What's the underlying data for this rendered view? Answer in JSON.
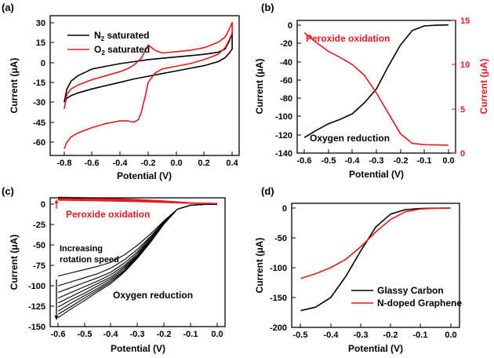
{
  "colors": {
    "black": "#000000",
    "red": "#e41a1c"
  },
  "chart_data": [
    {
      "panel": "(a)",
      "type": "line",
      "xlabel": "Potential (V)",
      "ylabel": "Current (μA)",
      "xlim": [
        -0.9,
        0.45
      ],
      "ylim": [
        -70,
        35
      ],
      "xticks": [
        -0.8,
        -0.6,
        -0.4,
        -0.2,
        0.0,
        0.2,
        0.4
      ],
      "xticklabels": [
        "-0.8",
        "-0.6",
        "-0.4",
        "-0.2",
        "0.0",
        "0.2",
        "0.4"
      ],
      "yticks": [
        -60,
        -45,
        -30,
        -15,
        0,
        15,
        30
      ],
      "yticklabels": [
        "-60",
        "-45",
        "-30",
        "-15",
        "0",
        "15",
        "30"
      ],
      "legend": {
        "placement": "top-left",
        "entries": [
          {
            "base": "N",
            "sub": "2",
            "rest": " saturated",
            "color": "#000000"
          },
          {
            "base": "O",
            "sub": "2",
            "rest": " saturated",
            "color": "#e41a1c"
          }
        ]
      },
      "series": [
        {
          "color": "#000000",
          "x": [
            -0.8,
            -0.78,
            -0.75,
            -0.7,
            -0.6,
            -0.5,
            -0.4,
            -0.3,
            -0.2,
            -0.1,
            0.0,
            0.1,
            0.2,
            0.3,
            0.35,
            0.38,
            0.4,
            0.4,
            0.38,
            0.35,
            0.3,
            0.2,
            0.1,
            0.0,
            -0.1,
            -0.2,
            -0.3,
            -0.4,
            -0.5,
            -0.6,
            -0.7,
            -0.75,
            -0.78,
            -0.8
          ],
          "y": [
            -30,
            -27,
            -25,
            -23,
            -20,
            -17.5,
            -15,
            -12.5,
            -10.5,
            -8.5,
            -6.5,
            -4.5,
            -2.5,
            0.5,
            3.5,
            7,
            10,
            22,
            16,
            10,
            7.5,
            6,
            5,
            4,
            3,
            2,
            0.5,
            -1,
            -3,
            -5,
            -10,
            -14,
            -20,
            -30
          ]
        },
        {
          "color": "#e41a1c",
          "x": [
            -0.8,
            -0.78,
            -0.75,
            -0.7,
            -0.6,
            -0.5,
            -0.4,
            -0.35,
            -0.3,
            -0.27,
            -0.25,
            -0.22,
            -0.2,
            -0.15,
            -0.1,
            0.0,
            0.1,
            0.2,
            0.3,
            0.35,
            0.38,
            0.4,
            0.4,
            0.38,
            0.35,
            0.3,
            0.2,
            0.1,
            0.0,
            -0.1,
            -0.15,
            -0.2,
            -0.25,
            -0.3,
            -0.35,
            -0.4,
            -0.5,
            -0.6,
            -0.7,
            -0.75,
            -0.78,
            -0.8
          ],
          "y": [
            -65,
            -60,
            -56,
            -53,
            -49,
            -46,
            -44,
            -44,
            -45,
            -43,
            -38,
            -25,
            -15,
            -8,
            -5,
            -3,
            -1,
            2,
            6,
            11,
            17,
            22,
            30,
            25,
            19,
            15,
            11,
            9,
            8,
            7,
            9,
            13,
            3,
            -2,
            -5,
            -7,
            -10,
            -13,
            -17,
            -20,
            -24,
            -35
          ]
        }
      ]
    },
    {
      "panel": "(b)",
      "type": "line",
      "xlabel": "Potential (V)",
      "ylabel": "Current (μA)",
      "y2label": "Current (μA)",
      "xlim": [
        -0.63,
        0.03
      ],
      "ylim": [
        -140,
        5
      ],
      "y2lim": [
        0,
        15
      ],
      "xticks": [
        -0.6,
        -0.5,
        -0.4,
        -0.3,
        -0.2,
        -0.1,
        0.0
      ],
      "xticklabels": [
        "-0.6",
        "-0.5",
        "-0.4",
        "-0.3",
        "-0.2",
        "-0.1",
        "0.0"
      ],
      "yticks": [
        -140,
        -120,
        -100,
        -80,
        -60,
        -40,
        -20,
        0
      ],
      "yticklabels": [
        "-140",
        "-120",
        "-100",
        "-80",
        "-60",
        "-40",
        "-20",
        "0"
      ],
      "y2ticks": [
        0,
        5,
        10,
        15
      ],
      "y2ticklabels": [
        "0",
        "5",
        "10",
        "15"
      ],
      "annotations": [
        {
          "text": "Peroxide oxidation",
          "color": "#e41a1c",
          "x": -0.6,
          "y": -13
        },
        {
          "text": "Oxygen reduction",
          "color": "#000000",
          "x": -0.48,
          "y": -117
        }
      ],
      "series": [
        {
          "color": "#000000",
          "axis": "left",
          "x": [
            -0.6,
            -0.55,
            -0.5,
            -0.45,
            -0.4,
            -0.35,
            -0.3,
            -0.25,
            -0.2,
            -0.15,
            -0.1,
            -0.05,
            0.0
          ],
          "y": [
            -123,
            -115,
            -108,
            -103,
            -97,
            -85,
            -70,
            -45,
            -22,
            -6,
            -1,
            -0.2,
            0
          ]
        },
        {
          "color": "#e41a1c",
          "axis": "right",
          "x": [
            -0.6,
            -0.55,
            -0.5,
            -0.45,
            -0.4,
            -0.35,
            -0.3,
            -0.25,
            -0.2,
            -0.15,
            -0.1,
            -0.05,
            0.0
          ],
          "y": [
            13.6,
            12.5,
            11.5,
            10.8,
            10.0,
            8.8,
            6.8,
            4.5,
            2.2,
            1.1,
            0.95,
            0.92,
            0.9
          ]
        }
      ]
    },
    {
      "panel": "(c)",
      "type": "line",
      "xlabel": "Potential (V)",
      "ylabel": "Current (μA)",
      "xlim": [
        -0.63,
        0.03
      ],
      "ylim": [
        -150,
        8
      ],
      "xticks": [
        -0.6,
        -0.5,
        -0.4,
        -0.3,
        -0.2,
        -0.1,
        0.0
      ],
      "xticklabels": [
        "-0.6",
        "-0.5",
        "-0.4",
        "-0.3",
        "-0.2",
        "-0.1",
        "0.0"
      ],
      "yticks": [
        -150,
        -125,
        -100,
        -75,
        -50,
        -25,
        0
      ],
      "yticklabels": [
        "-150",
        "-125",
        "-100",
        "-75",
        "-50",
        "-25",
        "0"
      ],
      "annotations": [
        {
          "text": "Peroxide oxidation",
          "color": "#e41a1c",
          "x": -0.59,
          "y": -3
        },
        {
          "text": "Increasing",
          "color": "#000000",
          "x": -0.6,
          "y": -42
        },
        {
          "text": "rotation speed",
          "color": "#000000",
          "x": -0.6,
          "y": -55
        },
        {
          "text": "Oxygen reduction",
          "color": "#000000",
          "x": -0.44,
          "y": -112
        }
      ],
      "reduction_x": [
        -0.6,
        -0.55,
        -0.5,
        -0.45,
        -0.4,
        -0.35,
        -0.3,
        -0.25,
        -0.2,
        -0.15,
        -0.1,
        -0.05,
        0.0
      ],
      "reduction_series": [
        [
          -88,
          -84,
          -80,
          -76,
          -71,
          -62,
          -50,
          -36,
          -20,
          -6,
          -1,
          -0.2,
          0
        ],
        [
          -100,
          -95,
          -90,
          -85,
          -78,
          -68,
          -55,
          -39,
          -21,
          -6,
          -1,
          -0.2,
          0
        ],
        [
          -108,
          -102,
          -96,
          -90,
          -83,
          -72,
          -58,
          -40,
          -22,
          -6,
          -1,
          -0.2,
          0
        ],
        [
          -115,
          -108,
          -101,
          -94,
          -86,
          -75,
          -60,
          -42,
          -22,
          -6,
          -1,
          -0.2,
          0
        ],
        [
          -121,
          -113,
          -105,
          -97,
          -89,
          -77,
          -62,
          -43,
          -23,
          -6,
          -1,
          -0.2,
          0
        ],
        [
          -126,
          -117,
          -109,
          -100,
          -91,
          -79,
          -63,
          -44,
          -23,
          -6,
          -1,
          -0.2,
          0
        ],
        [
          -131,
          -121,
          -112,
          -103,
          -93,
          -81,
          -64,
          -45,
          -23,
          -6,
          -1,
          -0.2,
          0
        ],
        [
          -135,
          -125,
          -115,
          -105,
          -95,
          -82,
          -65,
          -45,
          -23,
          -6,
          -1,
          -0.2,
          0
        ],
        [
          -139,
          -128,
          -118,
          -107,
          -97,
          -83,
          -66,
          -46,
          -24,
          -6,
          -1,
          -0.2,
          0
        ]
      ],
      "oxidation_x": [
        -0.6,
        -0.5,
        -0.4,
        -0.3,
        -0.2,
        -0.1,
        0.0
      ],
      "oxidation_series": [
        [
          5.0,
          4.5,
          4.0,
          3.3,
          2.3,
          1.2,
          0.8
        ],
        [
          6.0,
          5.5,
          4.9,
          4.0,
          2.8,
          1.4,
          0.9
        ],
        [
          7.0,
          6.4,
          5.7,
          4.7,
          3.3,
          1.6,
          1.0
        ],
        [
          8.0,
          7.3,
          6.5,
          5.4,
          3.8,
          1.8,
          1.1
        ],
        [
          9.0,
          8.2,
          7.3,
          6.0,
          4.3,
          2.0,
          1.2
        ]
      ]
    },
    {
      "panel": "(d)",
      "type": "line",
      "xlabel": "Potential (V)",
      "ylabel": "Current (μA)",
      "xlim": [
        -0.53,
        0.03
      ],
      "ylim": [
        -200,
        8
      ],
      "xticks": [
        -0.5,
        -0.4,
        -0.3,
        -0.2,
        -0.1,
        0.0
      ],
      "xticklabels": [
        "-0.5",
        "-0.4",
        "-0.3",
        "-0.2",
        "-0.1",
        "0.0"
      ],
      "yticks": [
        -200,
        -150,
        -100,
        -50,
        0
      ],
      "yticklabels": [
        "-200",
        "-150",
        "-100",
        "-50",
        "0"
      ],
      "legend": {
        "placement": "bottom-right",
        "entries": [
          {
            "text": "Glassy Carbon",
            "color": "#000000"
          },
          {
            "text": "N-doped Graphene",
            "color": "#e41a1c"
          }
        ]
      },
      "series": [
        {
          "name": "Glassy Carbon",
          "color": "#000000",
          "x": [
            -0.5,
            -0.45,
            -0.4,
            -0.35,
            -0.3,
            -0.25,
            -0.2,
            -0.15,
            -0.1,
            -0.05,
            0.0
          ],
          "y": [
            -172,
            -166,
            -150,
            -115,
            -72,
            -32,
            -10,
            -2.5,
            -0.5,
            -0.1,
            0
          ]
        },
        {
          "name": "N-doped Graphene",
          "color": "#e41a1c",
          "x": [
            -0.5,
            -0.45,
            -0.4,
            -0.35,
            -0.3,
            -0.25,
            -0.2,
            -0.15,
            -0.1,
            -0.05,
            0.0
          ],
          "y": [
            -118,
            -110,
            -100,
            -86,
            -65,
            -40,
            -19,
            -6,
            -1.5,
            -0.3,
            0
          ]
        }
      ]
    }
  ]
}
